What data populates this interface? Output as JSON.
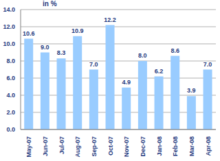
{
  "chart_data": {
    "type": "bar",
    "y_label": "in %",
    "categories": [
      "May-07",
      "Jun-07",
      "Jul-07",
      "Aug-07",
      "Sep-07",
      "Oct-07",
      "Nov-07",
      "Dec-07",
      "Jan-08",
      "Feb-08",
      "Mar-08",
      "Apr-08"
    ],
    "values": [
      10.6,
      9.0,
      8.3,
      10.9,
      7.0,
      12.2,
      4.9,
      8.0,
      6.2,
      8.6,
      3.9,
      7.0
    ],
    "value_labels": [
      "10.6",
      "9.0",
      "8.3",
      "10.9",
      "7.0",
      "12.2",
      "4.9",
      "8.0",
      "6.2",
      "8.6",
      "3.9",
      "7.0"
    ],
    "color": "#99ccff",
    "ylim": [
      0,
      14
    ],
    "yticks": [
      {
        "value": 0,
        "label": "0.0"
      },
      {
        "value": 2,
        "label": "2.0"
      },
      {
        "value": 4,
        "label": "4.0"
      },
      {
        "value": 6,
        "label": "6.0"
      },
      {
        "value": 8,
        "label": "8.0"
      },
      {
        "value": 10,
        "label": "10.0"
      },
      {
        "value": 12,
        "label": "12.0"
      },
      {
        "value": 14,
        "label": "14.0"
      }
    ],
    "grid": true,
    "data_labels": true
  }
}
